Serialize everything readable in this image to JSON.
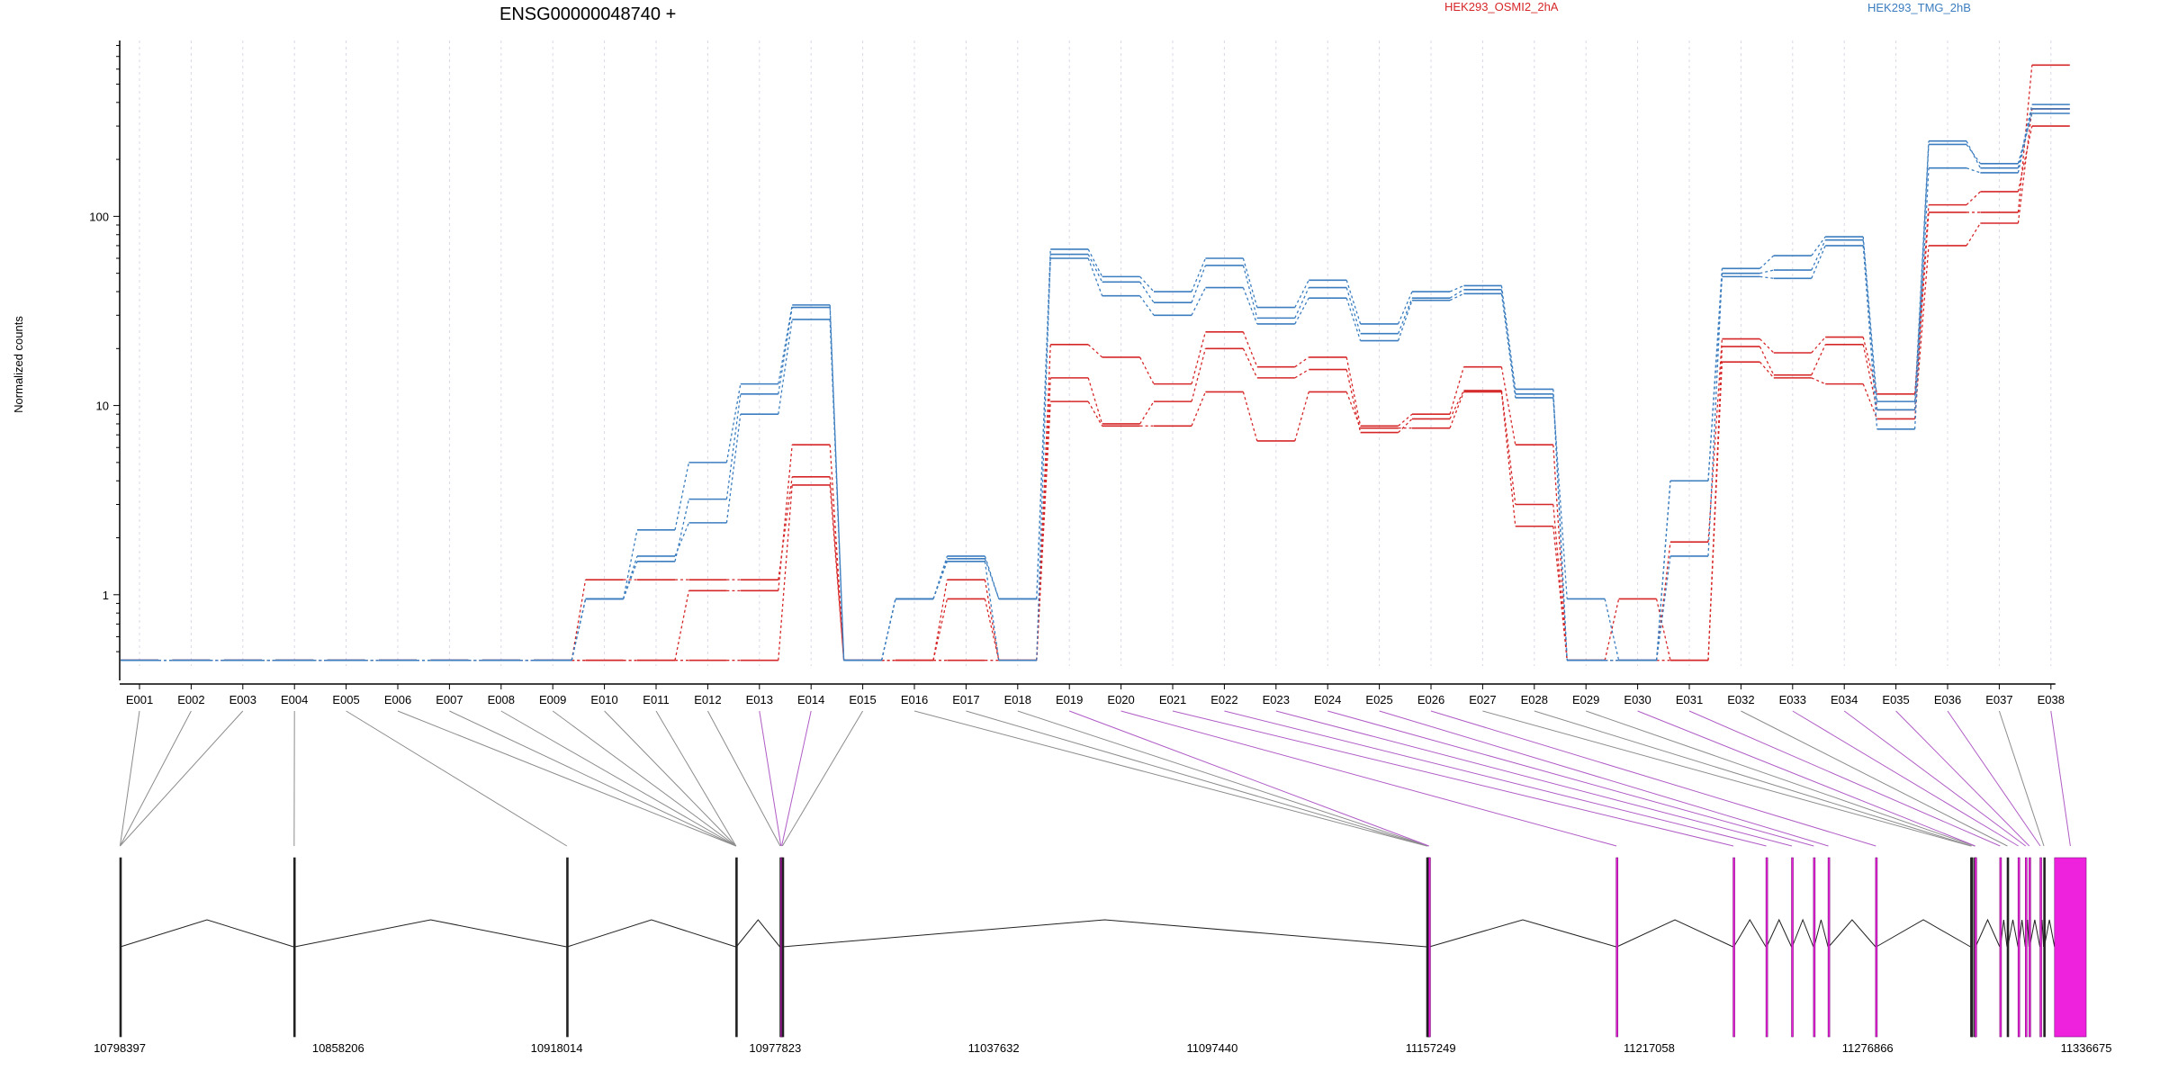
{
  "chart_data": {
    "type": "line",
    "title": "ENSG00000048740 +",
    "ylabel": "Normalized counts",
    "xlabel": "",
    "y_scale": "log",
    "ylim": [
      0.42,
      850
    ],
    "y_ticks": [
      1,
      10,
      100
    ],
    "y_tick_labels": [
      "1",
      "10",
      "100"
    ],
    "grid": "vertical dotted",
    "legend_position": "top",
    "categories": [
      "E001",
      "E002",
      "E003",
      "E004",
      "E005",
      "E006",
      "E007",
      "E008",
      "E009",
      "E010",
      "E011",
      "E012",
      "E013",
      "E014",
      "E015",
      "E016",
      "E017",
      "E018",
      "E019",
      "E020",
      "E021",
      "E022",
      "E023",
      "E024",
      "E025",
      "E026",
      "E027",
      "E028",
      "E029",
      "E030",
      "E031",
      "E032",
      "E033",
      "E034",
      "E035",
      "E036",
      "E037",
      "E038"
    ],
    "groups": [
      {
        "name": "HEK293_OSMI2_2hA",
        "color": "#d62728"
      },
      {
        "name": "HEK293_TMG_2hB",
        "color": "#3b7dbf"
      }
    ],
    "series": [
      {
        "group": "HEK293_OSMI2_2hA",
        "values": [
          0.45,
          0.45,
          0.45,
          0.45,
          0.45,
          0.45,
          0.45,
          0.45,
          0.45,
          0.45,
          0.45,
          0.45,
          0.45,
          3.8,
          0.45,
          0.45,
          0.45,
          0.45,
          10.5,
          7.8,
          7.8,
          11.8,
          6.5,
          11.8,
          7.6,
          7.6,
          11.8,
          2.3,
          0.45,
          0.45,
          0.45,
          17,
          14,
          13,
          8.5,
          70,
          92,
          370
        ]
      },
      {
        "group": "HEK293_OSMI2_2hA",
        "values": [
          0.45,
          0.45,
          0.45,
          0.45,
          0.45,
          0.45,
          0.45,
          0.45,
          0.45,
          1.2,
          1.2,
          1.2,
          1.2,
          4.2,
          0.45,
          0.45,
          1.2,
          0.45,
          14,
          8,
          10.5,
          20,
          14,
          15.5,
          7.2,
          8.5,
          12,
          3,
          0.45,
          0.95,
          0.45,
          20.5,
          14.5,
          21,
          9.5,
          105,
          105,
          630
        ]
      },
      {
        "group": "HEK293_OSMI2_2hA",
        "values": [
          0.45,
          0.45,
          0.45,
          0.45,
          0.45,
          0.45,
          0.45,
          0.45,
          0.45,
          0.45,
          0.45,
          1.05,
          1.05,
          6.2,
          0.45,
          0.45,
          0.95,
          0.45,
          21,
          18,
          13,
          24.5,
          16,
          18,
          7.8,
          9,
          16,
          6.2,
          0.45,
          0.45,
          1.9,
          22.5,
          19,
          23,
          11.5,
          115,
          135,
          300
        ]
      },
      {
        "group": "HEK293_TMG_2hB",
        "values": [
          0.45,
          0.45,
          0.45,
          0.45,
          0.45,
          0.45,
          0.45,
          0.45,
          0.45,
          0.95,
          1.6,
          2.4,
          9,
          28.5,
          0.45,
          0.95,
          1.55,
          0.95,
          60,
          38,
          30,
          42,
          27,
          37,
          22,
          36,
          39,
          11,
          0.95,
          0.45,
          4,
          48,
          47,
          70,
          7.5,
          180,
          170,
          370
        ]
      },
      {
        "group": "HEK293_TMG_2hB",
        "values": [
          0.45,
          0.45,
          0.45,
          0.45,
          0.45,
          0.45,
          0.45,
          0.45,
          0.45,
          0.95,
          1.5,
          3.2,
          11.5,
          33,
          0.45,
          0.95,
          1.5,
          0.45,
          63,
          45,
          35,
          55,
          29,
          42,
          24,
          37,
          41,
          11.5,
          0.45,
          0.45,
          1.6,
          50,
          52,
          75,
          9.5,
          240,
          190,
          350
        ]
      },
      {
        "group": "HEK293_TMG_2hB",
        "values": [
          0.45,
          0.45,
          0.45,
          0.45,
          0.45,
          0.45,
          0.45,
          0.45,
          0.45,
          0.95,
          2.2,
          5,
          13,
          34,
          0.45,
          0.95,
          1.6,
          0.95,
          67,
          48,
          40,
          60,
          33,
          46,
          27,
          40,
          43,
          12.2,
          0.45,
          0.45,
          4,
          53,
          62,
          78,
          10.5,
          250,
          180,
          390
        ]
      }
    ],
    "gene_coordinates": [
      "10798397",
      "10858206",
      "10918014",
      "10977823",
      "11037632",
      "11097440",
      "11157249",
      "11217058",
      "11276866",
      "11336675"
    ],
    "gene_range": [
      10798397,
      11336675
    ],
    "exons": [
      {
        "id": "E001",
        "start": 10798397,
        "end": 10798600,
        "highlight": false
      },
      {
        "id": "E002",
        "start": 10798397,
        "end": 10798600,
        "highlight": false
      },
      {
        "id": "E003",
        "start": 10798397,
        "end": 10798600,
        "highlight": false
      },
      {
        "id": "E004",
        "start": 10846000,
        "end": 10846300,
        "highlight": false
      },
      {
        "id": "E005",
        "start": 10920700,
        "end": 10920900,
        "highlight": false
      },
      {
        "id": "E006",
        "start": 10967000,
        "end": 10967200,
        "highlight": false
      },
      {
        "id": "E007",
        "start": 10967000,
        "end": 10967200,
        "highlight": false
      },
      {
        "id": "E008",
        "start": 10967000,
        "end": 10967200,
        "highlight": false
      },
      {
        "id": "E009",
        "start": 10967000,
        "end": 10967200,
        "highlight": false
      },
      {
        "id": "E010",
        "start": 10967000,
        "end": 10967200,
        "highlight": false
      },
      {
        "id": "E011",
        "start": 10967000,
        "end": 10967200,
        "highlight": false
      },
      {
        "id": "E012",
        "start": 10979100,
        "end": 10979300,
        "highlight": false
      },
      {
        "id": "E013",
        "start": 10979300,
        "end": 10979500,
        "highlight": true
      },
      {
        "id": "E014",
        "start": 10979500,
        "end": 10979700,
        "highlight": true
      },
      {
        "id": "E015",
        "start": 10979700,
        "end": 10979900,
        "highlight": false
      },
      {
        "id": "E016",
        "start": 11156100,
        "end": 11156300,
        "highlight": false
      },
      {
        "id": "E017",
        "start": 11156300,
        "end": 11156500,
        "highlight": false
      },
      {
        "id": "E018",
        "start": 11156500,
        "end": 11156700,
        "highlight": false
      },
      {
        "id": "E019",
        "start": 11156700,
        "end": 11156900,
        "highlight": true
      },
      {
        "id": "E020",
        "start": 11208000,
        "end": 11208200,
        "highlight": true
      },
      {
        "id": "E021",
        "start": 11240000,
        "end": 11240200,
        "highlight": true
      },
      {
        "id": "E022",
        "start": 11249000,
        "end": 11249200,
        "highlight": true
      },
      {
        "id": "E023",
        "start": 11256000,
        "end": 11256200,
        "highlight": true
      },
      {
        "id": "E024",
        "start": 11262000,
        "end": 11262200,
        "highlight": true
      },
      {
        "id": "E025",
        "start": 11266000,
        "end": 11266200,
        "highlight": true
      },
      {
        "id": "E026",
        "start": 11279000,
        "end": 11279200,
        "highlight": true
      },
      {
        "id": "E027",
        "start": 11305000,
        "end": 11305200,
        "highlight": false
      },
      {
        "id": "E028",
        "start": 11305200,
        "end": 11305400,
        "highlight": false
      },
      {
        "id": "E029",
        "start": 11306000,
        "end": 11306200,
        "highlight": false
      },
      {
        "id": "E030",
        "start": 11306200,
        "end": 11306400,
        "highlight": true
      },
      {
        "id": "E031",
        "start": 11313000,
        "end": 11313200,
        "highlight": true
      },
      {
        "id": "E032",
        "start": 11315000,
        "end": 11315200,
        "highlight": false
      },
      {
        "id": "E033",
        "start": 11318000,
        "end": 11318200,
        "highlight": true
      },
      {
        "id": "E034",
        "start": 11320000,
        "end": 11320200,
        "highlight": true
      },
      {
        "id": "E035",
        "start": 11321000,
        "end": 11321200,
        "highlight": true
      },
      {
        "id": "E036",
        "start": 11324000,
        "end": 11324200,
        "highlight": true
      },
      {
        "id": "E037",
        "start": 11325000,
        "end": 11325200,
        "highlight": false
      },
      {
        "id": "E038",
        "start": 11328000,
        "end": 11336675,
        "highlight": true
      }
    ],
    "colors": {
      "axis": "#000000",
      "grid": "#d9d9e6",
      "connector": "#8c8c8c",
      "connector_highlight": "#b05cc6",
      "exon_highlight": "#ee22dd",
      "intron": "#222222"
    }
  }
}
